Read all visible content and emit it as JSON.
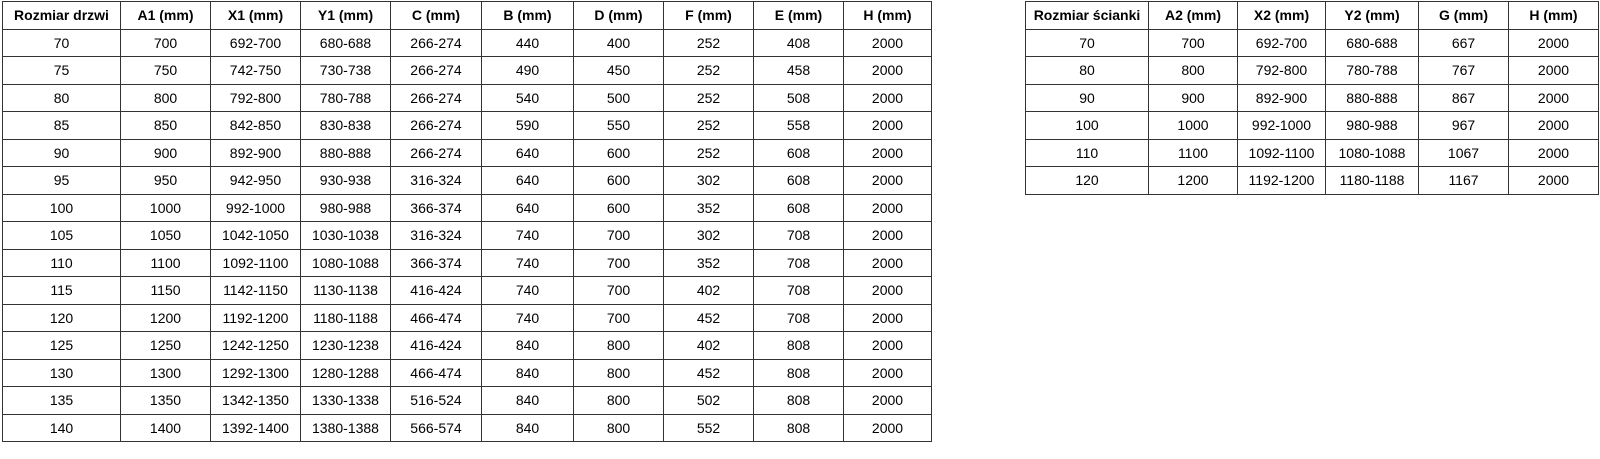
{
  "colors": {
    "background": "#ffffff",
    "border": "#333333",
    "text": "#000000"
  },
  "tables": [
    {
      "name": "door-size-table",
      "headers": [
        "Rozmiar drzwi",
        "A1 (mm)",
        "X1 (mm)",
        "Y1 (mm)",
        "C (mm)",
        "B (mm)",
        "D (mm)",
        "F (mm)",
        "E (mm)",
        "H (mm)"
      ],
      "rows": [
        [
          "70",
          "700",
          "692-700",
          "680-688",
          "266-274",
          "440",
          "400",
          "252",
          "408",
          "2000"
        ],
        [
          "75",
          "750",
          "742-750",
          "730-738",
          "266-274",
          "490",
          "450",
          "252",
          "458",
          "2000"
        ],
        [
          "80",
          "800",
          "792-800",
          "780-788",
          "266-274",
          "540",
          "500",
          "252",
          "508",
          "2000"
        ],
        [
          "85",
          "850",
          "842-850",
          "830-838",
          "266-274",
          "590",
          "550",
          "252",
          "558",
          "2000"
        ],
        [
          "90",
          "900",
          "892-900",
          "880-888",
          "266-274",
          "640",
          "600",
          "252",
          "608",
          "2000"
        ],
        [
          "95",
          "950",
          "942-950",
          "930-938",
          "316-324",
          "640",
          "600",
          "302",
          "608",
          "2000"
        ],
        [
          "100",
          "1000",
          "992-1000",
          "980-988",
          "366-374",
          "640",
          "600",
          "352",
          "608",
          "2000"
        ],
        [
          "105",
          "1050",
          "1042-1050",
          "1030-1038",
          "316-324",
          "740",
          "700",
          "302",
          "708",
          "2000"
        ],
        [
          "110",
          "1100",
          "1092-1100",
          "1080-1088",
          "366-374",
          "740",
          "700",
          "352",
          "708",
          "2000"
        ],
        [
          "115",
          "1150",
          "1142-1150",
          "1130-1138",
          "416-424",
          "740",
          "700",
          "402",
          "708",
          "2000"
        ],
        [
          "120",
          "1200",
          "1192-1200",
          "1180-1188",
          "466-474",
          "740",
          "700",
          "452",
          "708",
          "2000"
        ],
        [
          "125",
          "1250",
          "1242-1250",
          "1230-1238",
          "416-424",
          "840",
          "800",
          "402",
          "808",
          "2000"
        ],
        [
          "130",
          "1300",
          "1292-1300",
          "1280-1288",
          "466-474",
          "840",
          "800",
          "452",
          "808",
          "2000"
        ],
        [
          "135",
          "1350",
          "1342-1350",
          "1330-1338",
          "516-524",
          "840",
          "800",
          "502",
          "808",
          "2000"
        ],
        [
          "140",
          "1400",
          "1392-1400",
          "1380-1388",
          "566-574",
          "840",
          "800",
          "552",
          "808",
          "2000"
        ]
      ]
    },
    {
      "name": "wall-size-table",
      "headers": [
        "Rozmiar ścianki",
        "A2 (mm)",
        "X2 (mm)",
        "Y2 (mm)",
        "G (mm)",
        "H (mm)"
      ],
      "rows": [
        [
          "70",
          "700",
          "692-700",
          "680-688",
          "667",
          "2000"
        ],
        [
          "80",
          "800",
          "792-800",
          "780-788",
          "767",
          "2000"
        ],
        [
          "90",
          "900",
          "892-900",
          "880-888",
          "867",
          "2000"
        ],
        [
          "100",
          "1000",
          "992-1000",
          "980-988",
          "967",
          "2000"
        ],
        [
          "110",
          "1100",
          "1092-1100",
          "1080-1088",
          "1067",
          "2000"
        ],
        [
          "120",
          "1200",
          "1192-1200",
          "1180-1188",
          "1167",
          "2000"
        ]
      ]
    }
  ]
}
